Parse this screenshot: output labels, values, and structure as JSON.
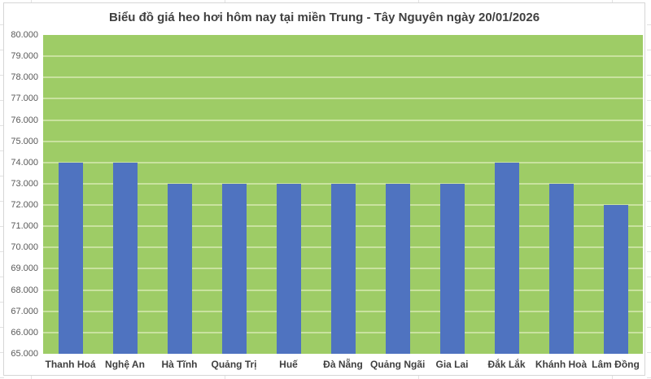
{
  "chart_data": {
    "type": "bar",
    "title": "Biểu đồ giá heo hơi hôm nay tại miền Trung - Tây Nguyên ngày 20/01/2026",
    "categories": [
      "Thanh Hoá",
      "Nghệ An",
      "Hà Tĩnh",
      "Quảng Trị",
      "Huế",
      "Đà Nẵng",
      "Quảng Ngãi",
      "Gia Lai",
      "Đắk Lắk",
      "Khánh Hoà",
      "Lâm Đồng"
    ],
    "values": [
      74000,
      74000,
      73000,
      73000,
      73000,
      73000,
      73000,
      73000,
      74000,
      73000,
      72000
    ],
    "ylim": [
      65000,
      80000
    ],
    "ytick_step": 1000,
    "ytick_labels": [
      "80.000",
      "79.000",
      "78.000",
      "77.000",
      "76.000",
      "75.000",
      "74.000",
      "73.000",
      "72.000",
      "71.000",
      "70.000",
      "69.000",
      "68.000",
      "67.000",
      "66.000",
      "65.000"
    ],
    "grid": true,
    "legend": "none",
    "colors": {
      "bar": "#4f73c0",
      "plot_background": "#9ecc66",
      "gridline": "#c9e29f",
      "title_text": "#404040",
      "ytick_text": "#595959",
      "xtick_text": "#3f3f3f",
      "chart_border": "#d6d6d6",
      "chart_background": "#ffffff"
    }
  }
}
